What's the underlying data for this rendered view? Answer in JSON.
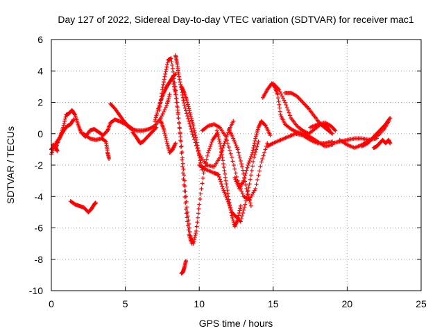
{
  "chart_data": {
    "type": "scatter",
    "title": "Day 127 of 2022, Sidereal Day-to-day VTEC variation (SDTVAR) for receiver mac1",
    "xlabel": "GPS time / hours",
    "ylabel": "SDTVAR / TECUs",
    "xlim": [
      0,
      25
    ],
    "ylim": [
      -10,
      6
    ],
    "xticks": [
      0,
      5,
      10,
      15,
      20,
      25
    ],
    "yticks": [
      -10,
      -8,
      -6,
      -4,
      -2,
      0,
      2,
      4,
      6
    ],
    "grid": true,
    "marker": "+",
    "color": "#ff0000",
    "series": [
      {
        "name": "trace-1",
        "x": [
          0.0,
          0.3,
          0.6,
          0.8,
          1.0,
          1.2,
          1.4,
          1.6,
          1.8,
          2.0,
          2.3,
          2.6,
          2.9,
          3.2,
          3.5,
          3.8,
          4.0,
          4.3,
          4.6,
          5.0,
          5.4,
          5.8,
          6.2,
          6.6,
          7.0,
          7.4,
          7.8,
          8.0
        ],
        "y": [
          -1.3,
          -0.6,
          -0.2,
          0.4,
          1.2,
          1.3,
          1.5,
          1.2,
          0.6,
          0.1,
          -0.2,
          0.2,
          0.3,
          0.1,
          -0.1,
          0.2,
          0.7,
          0.9,
          0.8,
          0.6,
          0.3,
          0.2,
          0.2,
          0.3,
          0.5,
          1.0,
          1.8,
          2.5
        ]
      },
      {
        "name": "trace-2",
        "x": [
          0.1,
          0.3,
          0.5,
          0.7,
          0.9,
          1.1,
          1.3,
          1.5
        ],
        "y": [
          -0.7,
          -0.9,
          -0.4,
          0.0,
          0.3,
          0.5,
          0.6,
          0.9
        ]
      },
      {
        "name": "trace-3",
        "x": [
          1.3,
          1.6,
          1.9,
          2.2,
          2.5,
          2.7,
          2.9,
          3.0
        ],
        "y": [
          -4.3,
          -4.5,
          -4.6,
          -4.7,
          -5.0,
          -4.8,
          -4.5,
          -4.4
        ]
      },
      {
        "name": "trace-4",
        "x": [
          2.2,
          2.6,
          3.0,
          3.4,
          3.7,
          3.8,
          3.9
        ],
        "y": [
          0.0,
          -0.3,
          -0.4,
          -0.3,
          -0.5,
          -1.2,
          -1.6
        ]
      },
      {
        "name": "trace-5",
        "x": [
          4.0,
          4.3,
          4.6,
          4.9,
          5.2,
          5.5
        ],
        "y": [
          1.9,
          1.6,
          1.2,
          0.8,
          0.5,
          0.3
        ]
      },
      {
        "name": "trace-6",
        "x": [
          5.5,
          5.8,
          6.0,
          6.2,
          6.5,
          6.8,
          7.1
        ],
        "y": [
          0.1,
          -0.3,
          -0.6,
          -0.5,
          -0.2,
          0.1,
          0.4
        ]
      },
      {
        "name": "trace-7",
        "x": [
          7.3,
          7.5,
          7.7,
          7.9,
          8.1,
          8.3,
          8.5,
          8.7,
          8.9,
          9.1,
          9.3,
          9.5
        ],
        "y": [
          1.5,
          2.8,
          3.8,
          4.7,
          4.8,
          3.5,
          2.0,
          0.0,
          -2.5,
          -4.8,
          -6.4,
          -7.0
        ]
      },
      {
        "name": "trace-8",
        "x": [
          7.0,
          7.2,
          7.4,
          7.6,
          7.8,
          8.0,
          8.2,
          8.4
        ],
        "y": [
          0.8,
          1.5,
          2.1,
          2.6,
          3.0,
          3.3,
          3.6,
          3.8
        ]
      },
      {
        "name": "trace-9",
        "x": [
          7.4,
          7.6,
          7.8,
          8.0,
          8.2,
          8.4
        ],
        "y": [
          0.8,
          0.3,
          -0.5,
          -1.2,
          -1.0,
          -0.6
        ]
      },
      {
        "name": "trace-10",
        "x": [
          8.4,
          8.5,
          8.6,
          8.8,
          9.0,
          9.3,
          9.6,
          10.0,
          10.5,
          11.0,
          11.4,
          11.7,
          12.0,
          12.3
        ],
        "y": [
          5.0,
          4.5,
          3.8,
          2.8,
          1.8,
          0.8,
          -0.2,
          -1.3,
          -2.0,
          -2.1,
          -1.5,
          -0.6,
          0.2,
          0.8
        ]
      },
      {
        "name": "trace-11",
        "x": [
          8.8,
          9.0,
          9.2,
          9.4,
          9.6,
          9.8,
          10.0,
          10.2
        ],
        "y": [
          3.0,
          2.6,
          2.0,
          1.2,
          0.5,
          -0.4,
          -1.4,
          -2.3
        ]
      },
      {
        "name": "trace-12",
        "x": [
          8.2,
          8.4,
          8.6,
          8.8,
          9.0,
          9.2,
          9.4,
          9.6,
          9.8,
          10.0,
          10.3,
          10.6,
          10.9,
          11.2
        ],
        "y": [
          3.5,
          2.5,
          1.0,
          -0.8,
          -3.0,
          -5.0,
          -6.5,
          -7.0,
          -6.2,
          -4.5,
          -2.5,
          -1.2,
          -0.4,
          0.0
        ]
      },
      {
        "name": "trace-13",
        "x": [
          8.8,
          8.9,
          9.0,
          9.1
        ],
        "y": [
          -8.9,
          -8.8,
          -8.5,
          -8.1
        ]
      },
      {
        "name": "trace-14",
        "x": [
          10.0,
          10.5,
          11.0,
          11.3,
          11.6,
          11.9,
          12.2,
          12.5,
          12.8,
          13.1,
          13.4,
          13.7,
          14.0
        ],
        "y": [
          -2.0,
          -2.3,
          -2.5,
          -2.6,
          -3.5,
          -4.2,
          -5.0,
          -5.3,
          -5.6,
          -4.5,
          -3.2,
          -1.5,
          -0.5
        ]
      },
      {
        "name": "trace-15",
        "x": [
          10.2,
          10.6,
          11.0,
          11.4,
          11.8,
          12.2,
          12.6,
          13.0,
          13.4,
          13.8,
          14.2,
          14.6
        ],
        "y": [
          0.2,
          0.5,
          0.6,
          0.4,
          -0.2,
          -1.5,
          -3.0,
          -4.0,
          -4.2,
          -3.5,
          -1.8,
          -0.6
        ]
      },
      {
        "name": "trace-16",
        "x": [
          11.2,
          11.4,
          11.6,
          11.8,
          12.0,
          12.2,
          12.4,
          12.6,
          12.8
        ],
        "y": [
          0.2,
          -0.6,
          -1.7,
          -3.0,
          -4.2,
          -5.2,
          -5.9,
          -5.5,
          -4.6
        ]
      },
      {
        "name": "trace-17",
        "x": [
          12.4,
          12.7,
          13.0,
          13.3,
          13.6,
          13.8,
          14.0,
          14.2,
          14.5,
          14.8
        ],
        "y": [
          -2.8,
          -3.5,
          -3.0,
          -2.0,
          -1.2,
          -0.3,
          0.4,
          0.8,
          0.5,
          -0.1
        ]
      },
      {
        "name": "trace-18",
        "x": [
          12.0,
          12.3,
          12.6,
          12.9,
          13.2,
          13.5
        ],
        "y": [
          0.3,
          -0.3,
          -1.0,
          -2.1,
          -3.5,
          -4.6
        ]
      },
      {
        "name": "trace-19",
        "x": [
          14.3,
          14.6,
          14.9,
          15.1,
          15.3,
          15.5,
          15.8,
          16.2,
          16.6,
          17.0,
          17.5,
          18.0,
          18.5,
          19.0
        ],
        "y": [
          2.3,
          2.8,
          3.2,
          3.0,
          2.5,
          1.2,
          0.6,
          0.3,
          0.1,
          0.0,
          -0.2,
          -0.5,
          -0.8,
          -0.7
        ]
      },
      {
        "name": "trace-20",
        "x": [
          15.0,
          15.4,
          15.8,
          16.2,
          16.6,
          17.0,
          17.4,
          17.8,
          18.2,
          18.6,
          18.8
        ],
        "y": [
          3.2,
          2.8,
          2.0,
          1.0,
          0.5,
          0.2,
          0.0,
          0.3,
          0.6,
          0.5,
          0.2
        ]
      },
      {
        "name": "trace-21",
        "x": [
          15.8,
          16.2,
          16.6,
          17.0,
          17.4,
          17.8,
          18.2,
          18.6,
          19.0
        ],
        "y": [
          2.6,
          2.6,
          2.4,
          2.0,
          1.6,
          1.1,
          0.6,
          0.3,
          0.0
        ]
      },
      {
        "name": "trace-22",
        "x": [
          14.6,
          15.0,
          15.5,
          16.0,
          16.5,
          17.0,
          17.5,
          18.0,
          18.5,
          19.0
        ],
        "y": [
          -0.8,
          -0.6,
          -0.4,
          -0.2,
          0.0,
          -0.1,
          -0.4,
          -0.6,
          -0.6,
          -0.5
        ]
      },
      {
        "name": "trace-23",
        "x": [
          17.5,
          18.0,
          18.5,
          18.9,
          19.2
        ],
        "y": [
          0.4,
          0.6,
          0.7,
          0.5,
          0.2
        ]
      },
      {
        "name": "trace-24",
        "x": [
          19.0,
          19.5,
          20.0,
          20.5,
          21.0,
          21.5,
          22.0,
          22.5,
          22.8
        ],
        "y": [
          -0.6,
          -0.5,
          -0.4,
          -0.3,
          -0.3,
          -0.4,
          -0.2,
          0.3,
          0.8
        ]
      },
      {
        "name": "trace-25",
        "x": [
          19.5,
          20.0,
          20.5,
          21.0,
          21.5,
          22.0
        ],
        "y": [
          -0.4,
          -0.7,
          -0.9,
          -0.7,
          -0.4,
          -0.3
        ]
      },
      {
        "name": "trace-26",
        "x": [
          21.0,
          21.4,
          21.8,
          22.0,
          22.3,
          22.6,
          22.9
        ],
        "y": [
          -0.8,
          -0.6,
          -0.2,
          0.0,
          0.3,
          0.6,
          1.0
        ]
      },
      {
        "name": "trace-27",
        "x": [
          21.8,
          22.0,
          22.2,
          22.4,
          22.6,
          22.8,
          22.9
        ],
        "y": [
          -0.9,
          -0.8,
          -0.6,
          -0.4,
          -0.6,
          -0.4,
          -0.6
        ]
      },
      {
        "name": "trace-28",
        "x": [
          0.0,
          0.1,
          0.2,
          0.3,
          0.4
        ],
        "y": [
          -1.0,
          -0.9,
          -0.8,
          -0.9,
          -1.1
        ]
      }
    ]
  }
}
